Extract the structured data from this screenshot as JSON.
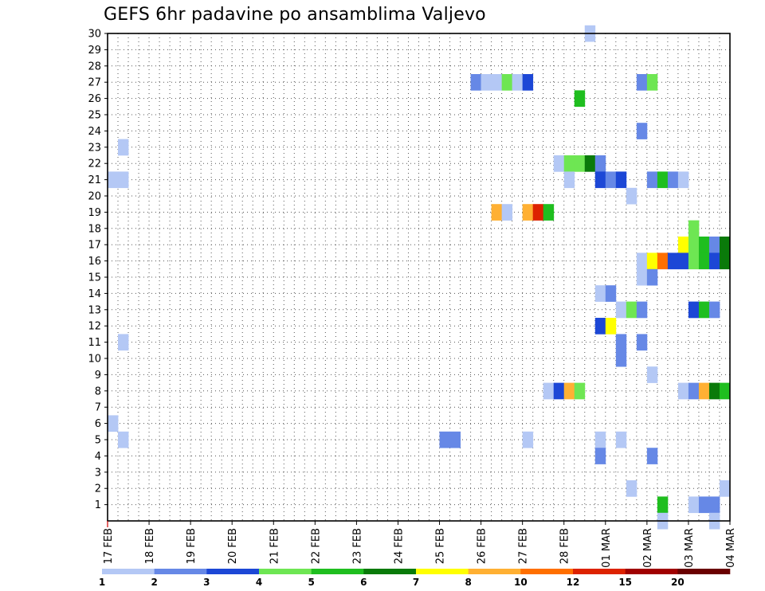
{
  "chart_data": {
    "type": "heatmap",
    "title": "GEFS 6hr padavine po ansamblima Valjevo",
    "y_ticks": [
      1,
      2,
      3,
      4,
      5,
      6,
      7,
      8,
      9,
      10,
      11,
      12,
      13,
      14,
      15,
      16,
      17,
      18,
      19,
      20,
      21,
      22,
      23,
      24,
      25,
      26,
      27,
      28,
      29,
      30
    ],
    "ylim": [
      0,
      30
    ],
    "xlim": [
      "17 FEB 00Z",
      "04 MAR 00Z"
    ],
    "x_ticks": [
      "17 FEB",
      "18 FEB",
      "19 FEB",
      "20 FEB",
      "21 FEB",
      "22 FEB",
      "23 FEB",
      "24 FEB",
      "25 FEB",
      "26 FEB",
      "27 FEB",
      "28 FEB",
      "01 MAR",
      "02 MAR",
      "03 MAR",
      "04 MAR"
    ],
    "time_step_hours": 6,
    "grid": true,
    "colorbar": {
      "labels": [
        "1",
        "2",
        "3",
        "4",
        "5",
        "6",
        "7",
        "8",
        "10",
        "12",
        "15",
        "20"
      ],
      "colors": [
        "#b4c8f5",
        "#6688e6",
        "#1c47d6",
        "#6ee653",
        "#1fbe1f",
        "#0a7a0a",
        "#ffff00",
        "#ffb033",
        "#ff6f00",
        "#dd2200",
        "#a00000",
        "#6a0000"
      ]
    },
    "series_note": "cells: [member, day index from 17 FEB, 6h slot in day, precipitation class index]",
    "cells": [
      [
        30,
        11,
        2,
        0
      ],
      [
        27,
        8,
        3,
        1
      ],
      [
        27,
        9,
        0,
        0
      ],
      [
        27,
        9,
        1,
        0
      ],
      [
        27,
        9,
        2,
        3
      ],
      [
        27,
        9,
        3,
        0
      ],
      [
        27,
        10,
        0,
        2
      ],
      [
        27,
        12,
        3,
        1
      ],
      [
        27,
        13,
        0,
        3
      ],
      [
        26,
        11,
        1,
        4
      ],
      [
        24,
        12,
        3,
        1
      ],
      [
        23,
        0,
        1,
        0
      ],
      [
        22,
        10,
        3,
        0
      ],
      [
        22,
        11,
        0,
        3
      ],
      [
        22,
        11,
        1,
        3
      ],
      [
        22,
        11,
        2,
        5
      ],
      [
        22,
        11,
        3,
        1
      ],
      [
        21,
        0,
        0,
        0
      ],
      [
        21,
        0,
        1,
        0
      ],
      [
        21,
        11,
        0,
        0
      ],
      [
        21,
        11,
        3,
        2
      ],
      [
        21,
        12,
        0,
        1
      ],
      [
        21,
        12,
        1,
        2
      ],
      [
        21,
        13,
        0,
        1
      ],
      [
        21,
        13,
        1,
        4
      ],
      [
        21,
        13,
        2,
        1
      ],
      [
        21,
        13,
        3,
        0
      ],
      [
        20,
        12,
        2,
        0
      ],
      [
        19,
        9,
        1,
        7
      ],
      [
        19,
        9,
        2,
        0
      ],
      [
        19,
        10,
        0,
        7
      ],
      [
        19,
        10,
        1,
        9
      ],
      [
        19,
        10,
        2,
        4
      ],
      [
        18,
        14,
        0,
        3
      ],
      [
        17,
        13,
        3,
        6
      ],
      [
        17,
        14,
        0,
        3
      ],
      [
        17,
        14,
        1,
        4
      ],
      [
        17,
        14,
        2,
        1
      ],
      [
        17,
        14,
        3,
        5
      ],
      [
        16,
        12,
        3,
        0
      ],
      [
        16,
        13,
        0,
        6
      ],
      [
        16,
        13,
        1,
        8
      ],
      [
        16,
        13,
        2,
        2
      ],
      [
        16,
        13,
        3,
        2
      ],
      [
        16,
        14,
        0,
        3
      ],
      [
        16,
        14,
        1,
        4
      ],
      [
        16,
        14,
        2,
        2
      ],
      [
        16,
        14,
        3,
        5
      ],
      [
        15,
        12,
        3,
        0
      ],
      [
        15,
        13,
        0,
        1
      ],
      [
        14,
        11,
        3,
        0
      ],
      [
        14,
        12,
        0,
        1
      ],
      [
        13,
        12,
        1,
        0
      ],
      [
        13,
        12,
        2,
        3
      ],
      [
        13,
        12,
        3,
        1
      ],
      [
        13,
        14,
        0,
        2
      ],
      [
        13,
        14,
        1,
        4
      ],
      [
        13,
        14,
        2,
        1
      ],
      [
        12,
        11,
        3,
        2
      ],
      [
        12,
        12,
        0,
        6
      ],
      [
        11,
        0,
        1,
        0
      ],
      [
        11,
        12,
        1,
        1
      ],
      [
        11,
        12,
        3,
        1
      ],
      [
        10,
        12,
        1,
        1
      ],
      [
        9,
        13,
        0,
        0
      ],
      [
        8,
        10,
        2,
        0
      ],
      [
        8,
        10,
        3,
        2
      ],
      [
        8,
        11,
        0,
        7
      ],
      [
        8,
        11,
        1,
        3
      ],
      [
        8,
        13,
        3,
        0
      ],
      [
        8,
        14,
        0,
        1
      ],
      [
        8,
        14,
        1,
        7
      ],
      [
        8,
        14,
        2,
        5
      ],
      [
        8,
        14,
        3,
        4
      ],
      [
        6,
        0,
        0,
        0
      ],
      [
        5,
        0,
        1,
        0
      ],
      [
        5,
        8,
        0,
        1
      ],
      [
        5,
        8,
        1,
        1
      ],
      [
        5,
        10,
        0,
        0
      ],
      [
        5,
        11,
        3,
        0
      ],
      [
        5,
        12,
        1,
        0
      ],
      [
        4,
        11,
        3,
        1
      ],
      [
        4,
        13,
        0,
        1
      ],
      [
        2,
        12,
        2,
        0
      ],
      [
        2,
        14,
        3,
        0
      ],
      [
        1,
        13,
        1,
        4
      ],
      [
        1,
        14,
        0,
        0
      ],
      [
        1,
        14,
        1,
        1
      ],
      [
        1,
        14,
        2,
        1
      ],
      [
        0,
        13,
        1,
        0
      ],
      [
        0,
        14,
        2,
        0
      ]
    ]
  }
}
